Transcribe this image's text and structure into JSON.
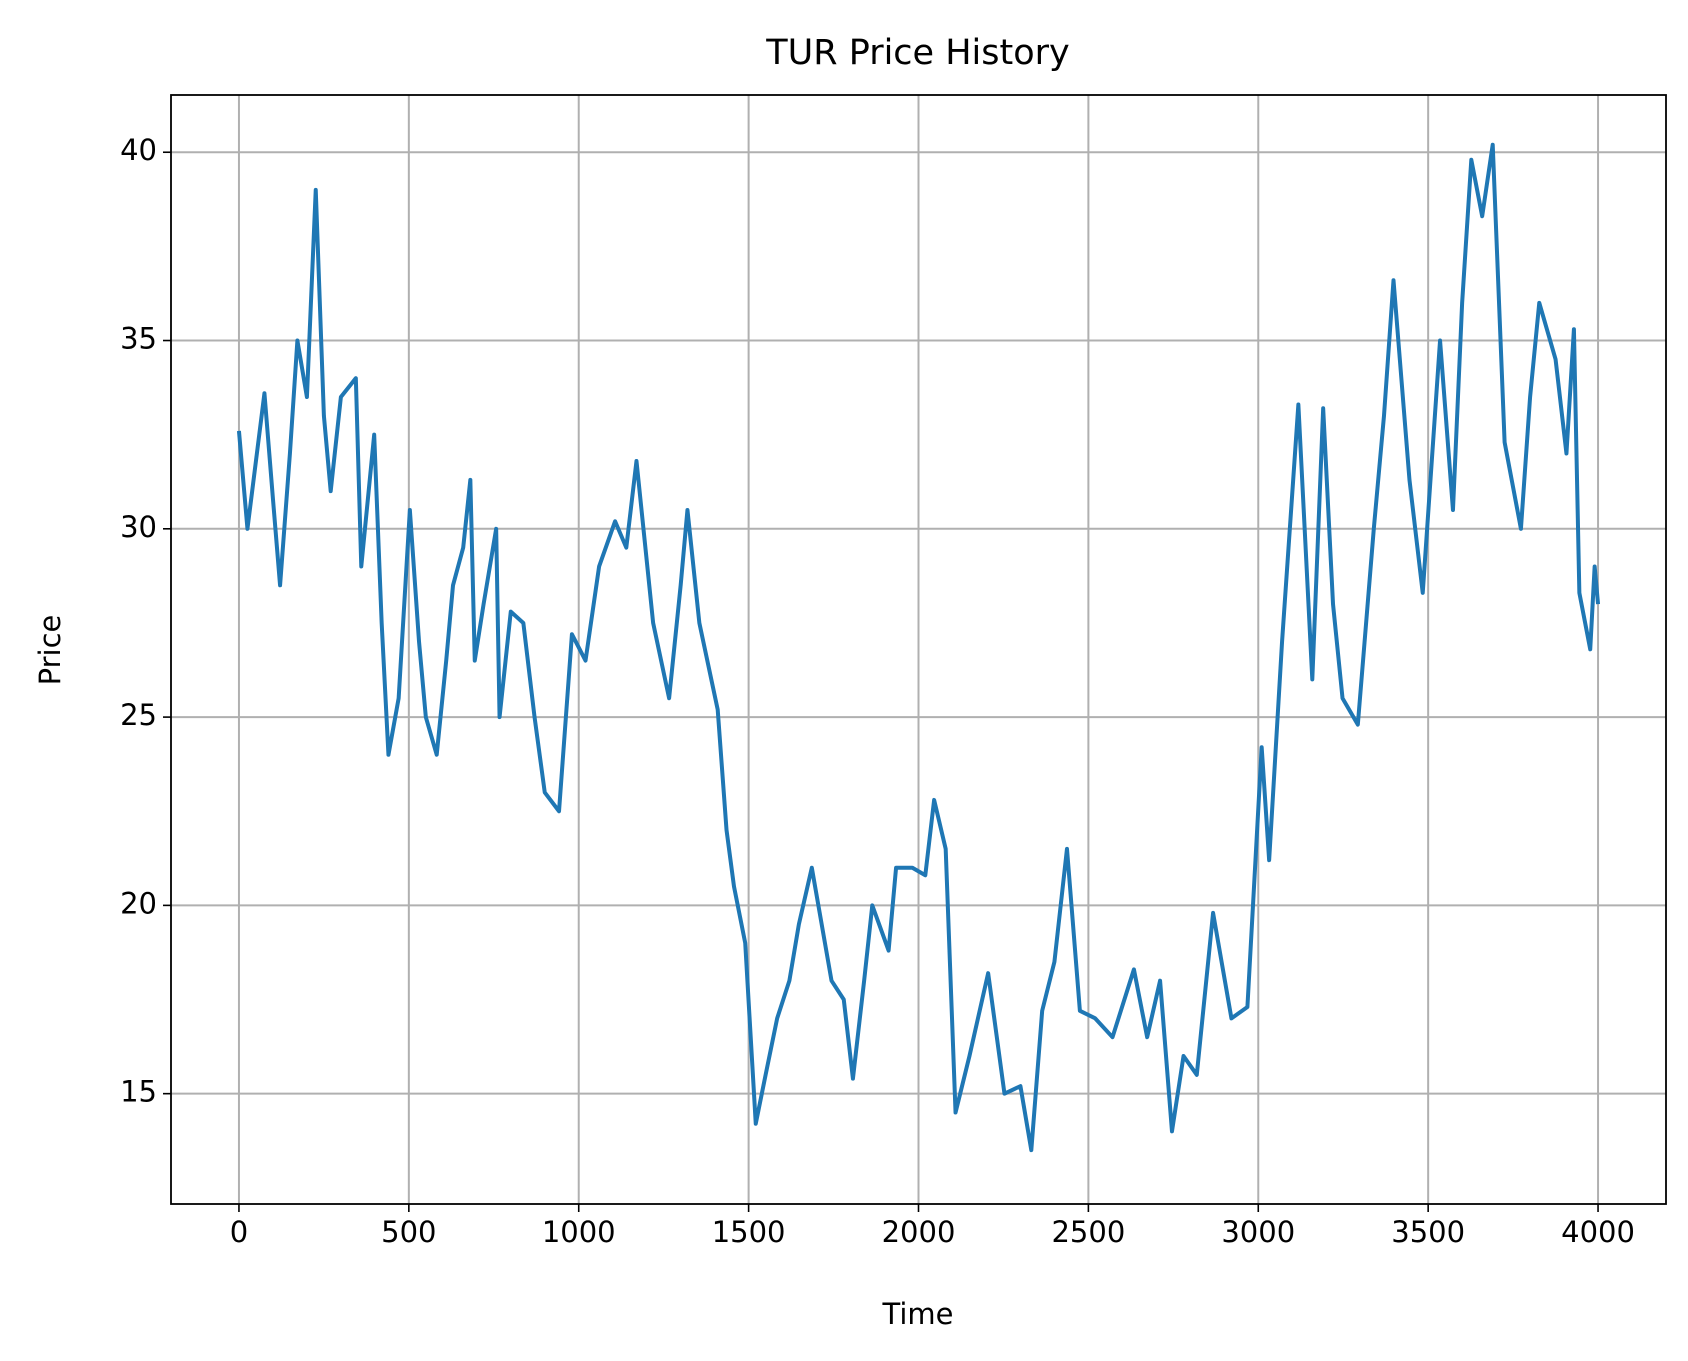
{
  "chart_data": {
    "type": "line",
    "title": "TUR Price History",
    "x_label": "Time",
    "y_label": "Price",
    "x": [
      0,
      25,
      50,
      75,
      100,
      121,
      150,
      172,
      200,
      226,
      250,
      270,
      300,
      344,
      360,
      398,
      420,
      440,
      470,
      503,
      530,
      550,
      582,
      610,
      630,
      660,
      681,
      694,
      720,
      757,
      767,
      800,
      837,
      870,
      900,
      942,
      980,
      1020,
      1060,
      1107,
      1140,
      1170,
      1219,
      1266,
      1300,
      1320,
      1355,
      1409,
      1435,
      1457,
      1490,
      1521,
      1550,
      1584,
      1620,
      1648,
      1686,
      1744,
      1780,
      1807,
      1840,
      1864,
      1912,
      1934,
      1982,
      2020,
      2046,
      2080,
      2109,
      2150,
      2205,
      2253,
      2300,
      2332,
      2364,
      2400,
      2437,
      2475,
      2520,
      2571,
      2634,
      2673,
      2711,
      2746,
      2780,
      2819,
      2867,
      2921,
      2968,
      3010,
      3032,
      3070,
      3118,
      3159,
      3191,
      3220,
      3248,
      3293,
      3340,
      3370,
      3398,
      3445,
      3484,
      3535,
      3573,
      3600,
      3627,
      3659,
      3690,
      3725,
      3773,
      3800,
      3827,
      3875,
      3907,
      3929,
      3945,
      3977,
      3990,
      4000
    ],
    "series": [
      {
        "name": "TUR",
        "color": "#1f77b4",
        "values": [
          32.6,
          30.0,
          31.8,
          33.6,
          30.8,
          28.5,
          32.0,
          35.0,
          33.5,
          39.0,
          33.0,
          31.0,
          33.5,
          34.0,
          29.0,
          32.5,
          27.5,
          24.0,
          25.5,
          30.5,
          27.0,
          25.0,
          24.0,
          26.5,
          28.5,
          29.5,
          31.3,
          26.5,
          28.0,
          30.0,
          25.0,
          27.8,
          27.5,
          25.0,
          23.0,
          22.5,
          27.2,
          26.5,
          29.0,
          30.2,
          29.5,
          31.8,
          27.5,
          25.5,
          28.5,
          30.5,
          27.5,
          25.2,
          22.0,
          20.5,
          19.0,
          14.2,
          15.5,
          17.0,
          18.0,
          19.5,
          21.0,
          18.0,
          17.5,
          15.4,
          18.0,
          20.0,
          18.8,
          21.0,
          21.0,
          20.8,
          22.8,
          21.5,
          14.5,
          16.0,
          18.2,
          15.0,
          15.2,
          13.5,
          17.2,
          18.5,
          21.5,
          17.2,
          17.0,
          16.5,
          18.3,
          16.5,
          18.0,
          14.0,
          16.0,
          15.5,
          19.8,
          17.0,
          17.3,
          24.2,
          21.2,
          27.0,
          33.3,
          26.0,
          33.2,
          28.0,
          25.5,
          24.8,
          30.0,
          33.0,
          36.6,
          31.3,
          28.3,
          35.0,
          30.5,
          36.0,
          39.8,
          38.3,
          40.2,
          32.3,
          30.0,
          33.5,
          36.0,
          34.5,
          32.0,
          35.3,
          28.3,
          26.8,
          29.0,
          28.0
        ]
      }
    ],
    "xlim": [
      -200,
      4200
    ],
    "ylim": [
      12.07,
      41.52
    ],
    "xticks": [
      0,
      500,
      1000,
      1500,
      2000,
      2500,
      3000,
      3500,
      4000
    ],
    "yticks": [
      15,
      20,
      25,
      30,
      35,
      40
    ],
    "grid": true
  }
}
